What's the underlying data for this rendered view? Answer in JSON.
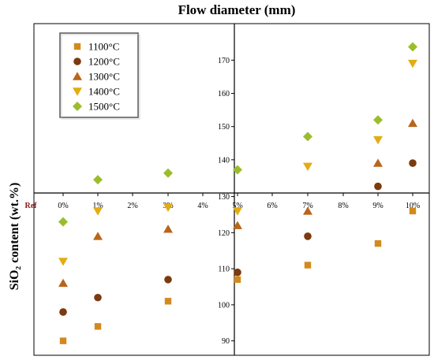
{
  "chart_data": {
    "type": "scatter",
    "title": "Flow diameter (mm)",
    "ylabel": "SiO₂ content (wt.%)",
    "x_categories": [
      "Ref",
      "0%",
      "1%",
      "2%",
      "3%",
      "4%",
      "5%",
      "6%",
      "7%",
      "8%",
      "9%",
      "10%"
    ],
    "lower_axis": {
      "ticks": [
        90,
        100,
        110,
        120,
        130
      ],
      "ylim": [
        86,
        131
      ]
    },
    "upper_axis": {
      "ticks": [
        140,
        150,
        160,
        170
      ],
      "ylim": [
        130,
        181
      ]
    },
    "legend_position": "top-left",
    "series": [
      {
        "name": "1100°C",
        "marker": "square",
        "color": "#d38a1c",
        "x": [
          0,
          1,
          3,
          5,
          7,
          9,
          10
        ],
        "y": [
          90,
          94,
          101,
          107,
          111,
          117,
          126
        ]
      },
      {
        "name": "1200°C",
        "marker": "circle",
        "color": "#7b3a0f",
        "x": [
          0,
          1,
          3,
          5,
          7,
          9,
          10
        ],
        "y": [
          98,
          102,
          107,
          109,
          119,
          132,
          139
        ]
      },
      {
        "name": "1300°C",
        "marker": "triangle-up",
        "color": "#b9651b",
        "x": [
          0,
          1,
          3,
          5,
          7,
          9,
          10
        ],
        "y": [
          106,
          119,
          121,
          122,
          126,
          139,
          151
        ]
      },
      {
        "name": "1400°C",
        "marker": "triangle-down",
        "color": "#e3ac12",
        "x": [
          0,
          1,
          3,
          5,
          7,
          9,
          10
        ],
        "y": [
          112,
          126,
          127,
          126,
          138,
          146,
          169
        ]
      },
      {
        "name": "1500°C",
        "marker": "diamond",
        "color": "#9bbd2c",
        "x": [
          0,
          1,
          3,
          5,
          7,
          9,
          10
        ],
        "y": [
          123,
          134,
          136,
          137,
          147,
          152,
          174
        ]
      }
    ]
  }
}
